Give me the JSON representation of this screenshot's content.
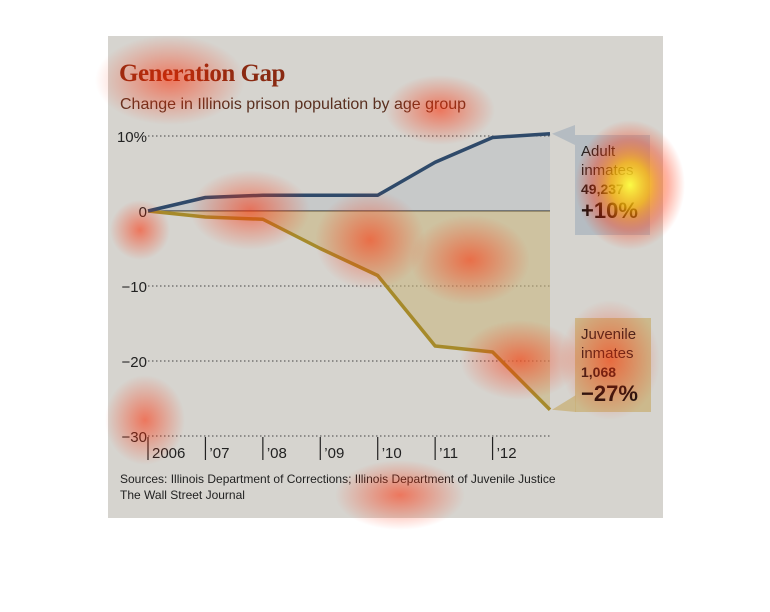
{
  "header": {
    "title": "Generation Gap",
    "subtitle": "Change in Illinois prison population by age group"
  },
  "source": {
    "line1": "Sources: Illinois Department of Corrections; Illinois Department of Juvenile Justice",
    "line2": "The Wall Street Journal"
  },
  "callouts": {
    "adult": {
      "label1": "Adult",
      "label2": "inmates",
      "count": "49,237",
      "pct": "+10%"
    },
    "juvenile": {
      "label1": "Juvenile",
      "label2": "inmates",
      "count": "1,068",
      "pct": "−27%"
    }
  },
  "colors": {
    "adult_line": "#2f4a6a",
    "juvenile_line": "#a68a2a",
    "juvenile_fill": "#c9b27a",
    "title": "#8a2a12",
    "panel": "#d6d4cf"
  },
  "chart_data": {
    "type": "line",
    "title": "Generation Gap",
    "subtitle": "Change in Illinois prison population by age group",
    "xlabel": "",
    "ylabel": "",
    "x_tick_labels": [
      "2006",
      "’07",
      "’08",
      "’09",
      "’10",
      "’11",
      "’12"
    ],
    "y_tick_labels": [
      "10%",
      "0",
      "−10",
      "−20",
      "−30"
    ],
    "y_ticks": [
      10,
      0,
      -10,
      -20,
      -30
    ],
    "ylim": [
      -30,
      10
    ],
    "xlim": [
      2006,
      2013
    ],
    "grid": "dotted horizontal",
    "series": [
      {
        "name": "Adult inmates",
        "x": [
          2006,
          2007,
          2008,
          2009,
          2010,
          2011,
          2012,
          2013
        ],
        "values": [
          0,
          1.8,
          2.1,
          2.1,
          2.1,
          6.5,
          9.8,
          10.3
        ]
      },
      {
        "name": "Juvenile inmates",
        "x": [
          2006,
          2007,
          2008,
          2009,
          2010,
          2011,
          2012,
          2013
        ],
        "values": [
          0,
          -0.8,
          -1.1,
          -5.0,
          -8.6,
          -18.0,
          -18.8,
          -26.5
        ]
      }
    ]
  }
}
